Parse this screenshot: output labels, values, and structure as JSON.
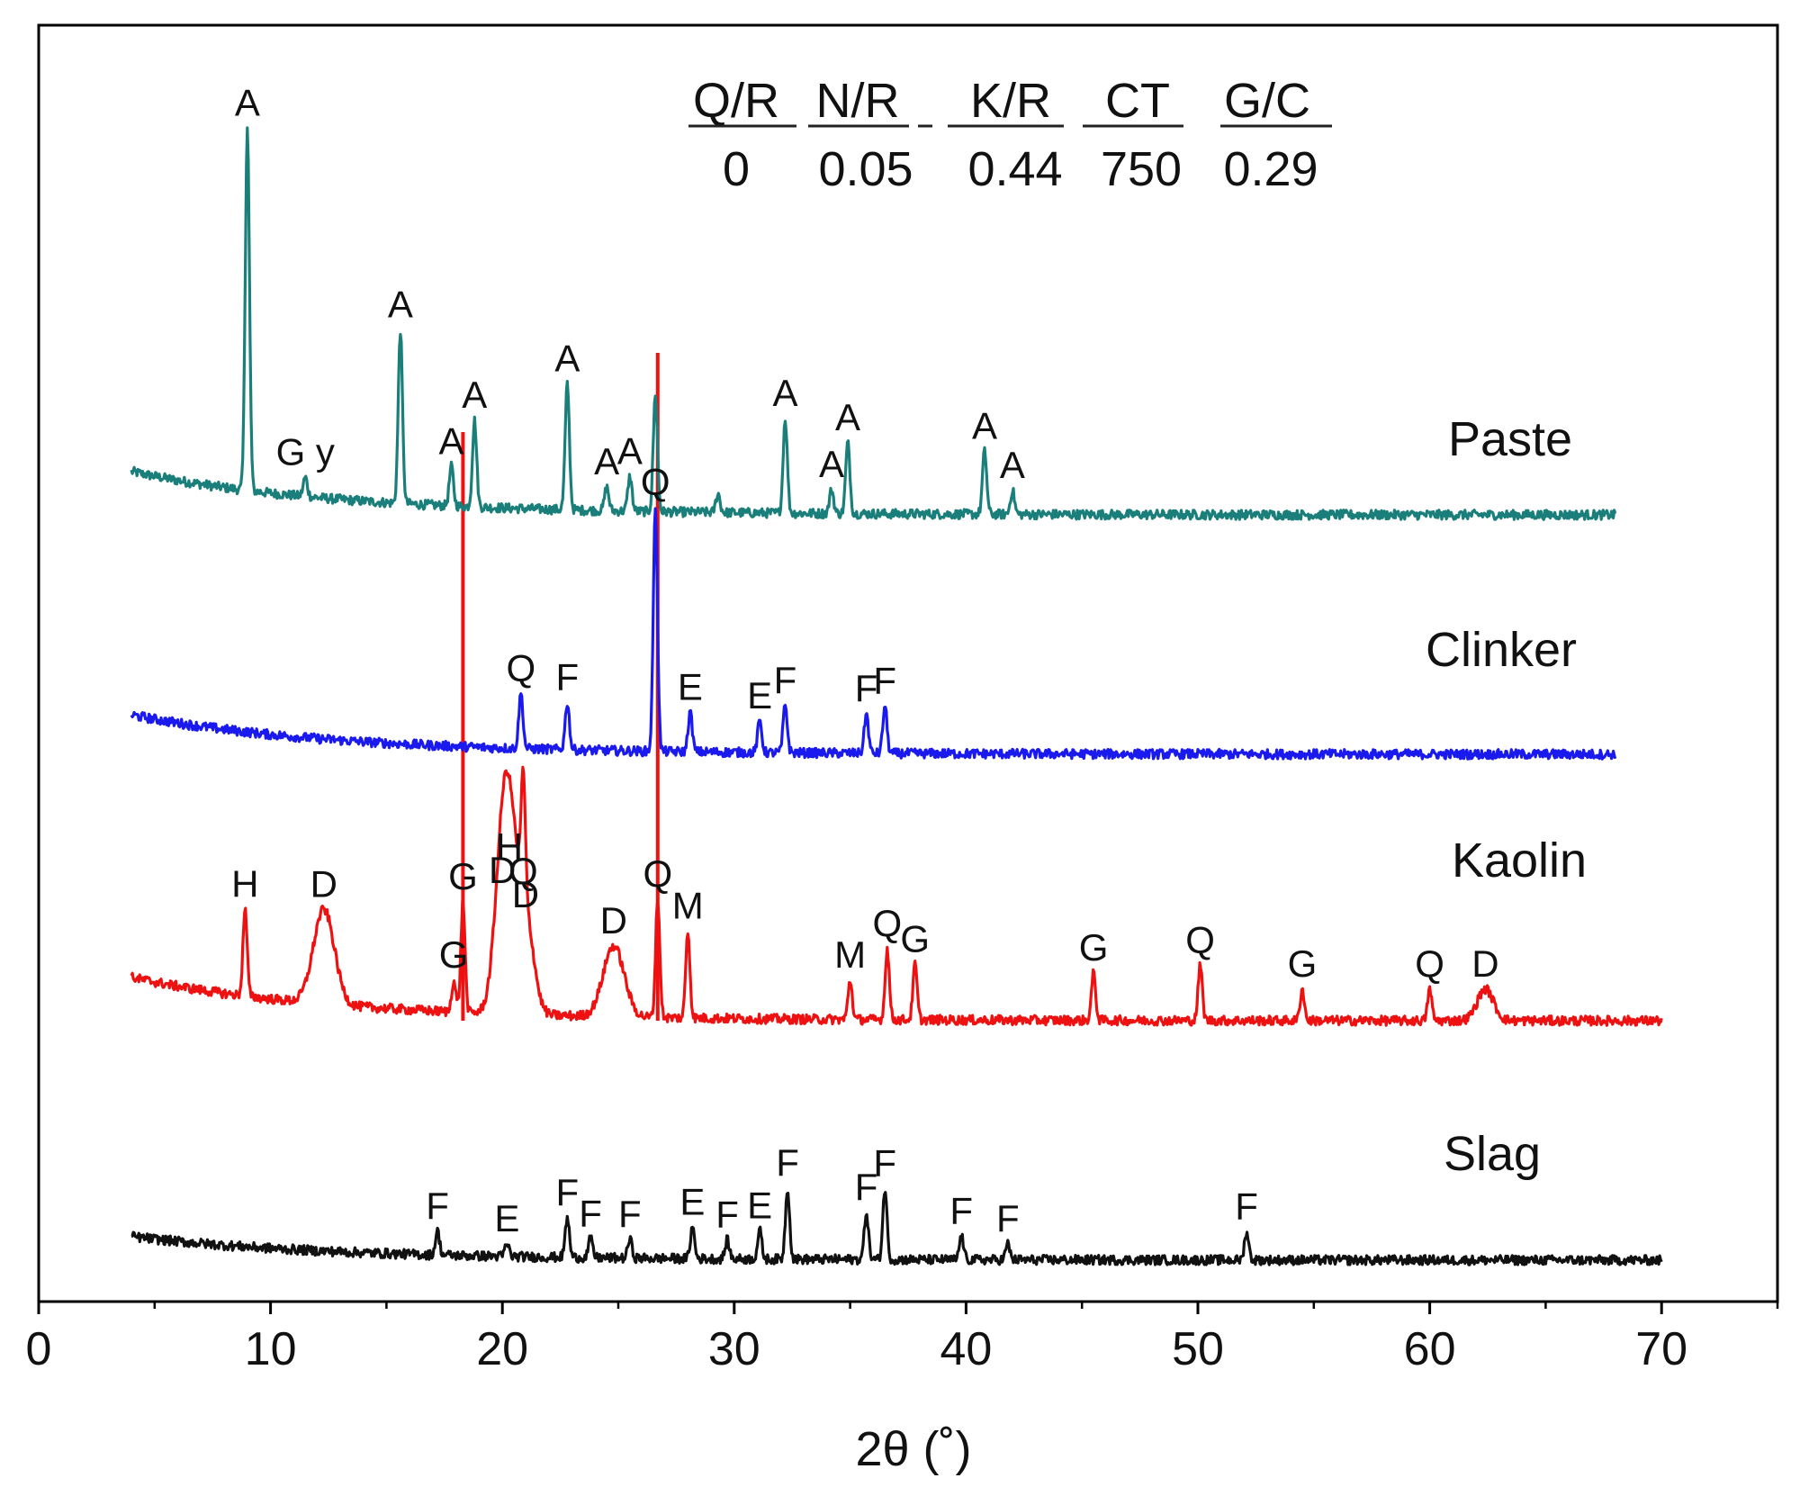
{
  "chart_data": {
    "type": "line",
    "title": "",
    "xlabel": "2θ (˚)",
    "ylabel": "",
    "xlim": [
      0,
      75
    ],
    "xticks": [
      0,
      10,
      20,
      30,
      40,
      50,
      60,
      70
    ],
    "tick_labels": [
      "0",
      "10",
      "20",
      "30",
      "40",
      "50",
      "60",
      "70"
    ],
    "grid": false,
    "legend": "series labels at right of each trace",
    "parameters": {
      "headers": [
        "Q/R",
        "N/R",
        "K/R",
        "CT",
        "G/C"
      ],
      "values": [
        "0",
        "0.05",
        "0.44",
        "750",
        "0.29"
      ]
    },
    "colors": {
      "paste": "#1a7f7a",
      "clinker": "#1a1aee",
      "kaolin": "#ee1111",
      "slag": "#111111",
      "axis": "#000000"
    },
    "reference_lines": [
      {
        "x": 18.3,
        "color": "#ee1111"
      },
      {
        "x": 26.7,
        "color": "#ee1111"
      }
    ],
    "series": [
      {
        "name": "Paste",
        "baseline": 0.44,
        "start_offset": 0.55,
        "xrange": [
          4,
          68
        ],
        "peaks": [
          {
            "x": 9.0,
            "h": 2.3,
            "label": "A"
          },
          {
            "x": 11.5,
            "h": 0.12,
            "label": "G y"
          },
          {
            "x": 15.6,
            "h": 1.1,
            "label": "A"
          },
          {
            "x": 17.8,
            "h": 0.25,
            "label": "A"
          },
          {
            "x": 18.8,
            "h": 0.55,
            "label": "A"
          },
          {
            "x": 22.8,
            "h": 0.8,
            "label": "A"
          },
          {
            "x": 24.5,
            "h": 0.15,
            "label": "A"
          },
          {
            "x": 25.5,
            "h": 0.22,
            "label": "A"
          },
          {
            "x": 26.6,
            "h": 0.75,
            "label": ""
          },
          {
            "x": 29.3,
            "h": 0.12,
            "label": ""
          },
          {
            "x": 32.2,
            "h": 0.6,
            "label": "A"
          },
          {
            "x": 34.2,
            "h": 0.15,
            "label": "A"
          },
          {
            "x": 34.9,
            "h": 0.45,
            "label": "A"
          },
          {
            "x": 40.8,
            "h": 0.4,
            "label": "A"
          },
          {
            "x": 42.0,
            "h": 0.15,
            "label": "A"
          }
        ]
      },
      {
        "name": "Clinker",
        "baseline": 0.42,
        "start_offset": 0.5,
        "xrange": [
          4,
          68
        ],
        "peaks": [
          {
            "x": 20.8,
            "h": 0.35,
            "label": "Q"
          },
          {
            "x": 22.8,
            "h": 0.3,
            "label": "F"
          },
          {
            "x": 26.6,
            "h": 1.55,
            "label": "Q"
          },
          {
            "x": 28.1,
            "h": 0.25,
            "label": "E"
          },
          {
            "x": 31.1,
            "h": 0.2,
            "label": "E"
          },
          {
            "x": 32.2,
            "h": 0.3,
            "label": "F"
          },
          {
            "x": 35.7,
            "h": 0.25,
            "label": "F"
          },
          {
            "x": 36.5,
            "h": 0.3,
            "label": "F"
          }
        ]
      },
      {
        "name": "Kaolin",
        "baseline": 0.44,
        "start_offset": 0.55,
        "xrange": [
          4,
          70
        ],
        "peaks": [
          {
            "x": 8.9,
            "h": 0.55,
            "label": "H"
          },
          {
            "x": 12.3,
            "h": 0.6,
            "label": "D"
          },
          {
            "x": 17.9,
            "h": 0.2,
            "label": "G"
          },
          {
            "x": 18.3,
            "h": 0.7,
            "label": "G"
          },
          {
            "x": 20.0,
            "h": 0.75,
            "label": "D"
          },
          {
            "x": 20.3,
            "h": 0.9,
            "label": "H"
          },
          {
            "x": 20.9,
            "h": 0.75,
            "label": "Q"
          },
          {
            "x": 21.0,
            "h": 0.6,
            "label": "D"
          },
          {
            "x": 24.8,
            "h": 0.45,
            "label": "D"
          },
          {
            "x": 26.7,
            "h": 0.75,
            "label": "Q"
          },
          {
            "x": 28.0,
            "h": 0.55,
            "label": "M"
          },
          {
            "x": 35.0,
            "h": 0.25,
            "label": "M"
          },
          {
            "x": 36.6,
            "h": 0.45,
            "label": "Q"
          },
          {
            "x": 37.8,
            "h": 0.35,
            "label": "G"
          },
          {
            "x": 45.5,
            "h": 0.3,
            "label": "G"
          },
          {
            "x": 50.1,
            "h": 0.35,
            "label": "Q"
          },
          {
            "x": 54.5,
            "h": 0.2,
            "label": "G"
          },
          {
            "x": 60.0,
            "h": 0.2,
            "label": "Q"
          },
          {
            "x": 62.4,
            "h": 0.2,
            "label": "D"
          }
        ]
      },
      {
        "name": "Slag",
        "baseline": 0.22,
        "start_offset": 0.3,
        "xrange": [
          4,
          70
        ],
        "peaks": [
          {
            "x": 17.2,
            "h": 0.15,
            "label": "F"
          },
          {
            "x": 20.2,
            "h": 0.08,
            "label": "E"
          },
          {
            "x": 22.8,
            "h": 0.25,
            "label": "F"
          },
          {
            "x": 23.8,
            "h": 0.12,
            "label": "F"
          },
          {
            "x": 25.5,
            "h": 0.12,
            "label": "F"
          },
          {
            "x": 28.2,
            "h": 0.2,
            "label": "E"
          },
          {
            "x": 29.7,
            "h": 0.12,
            "label": "F"
          },
          {
            "x": 31.1,
            "h": 0.18,
            "label": "E"
          },
          {
            "x": 32.3,
            "h": 0.45,
            "label": "F"
          },
          {
            "x": 35.7,
            "h": 0.3,
            "label": "F"
          },
          {
            "x": 36.5,
            "h": 0.45,
            "label": "F"
          },
          {
            "x": 39.8,
            "h": 0.15,
            "label": "F"
          },
          {
            "x": 41.8,
            "h": 0.1,
            "label": "F"
          },
          {
            "x": 52.1,
            "h": 0.18,
            "label": "F"
          }
        ]
      }
    ]
  }
}
